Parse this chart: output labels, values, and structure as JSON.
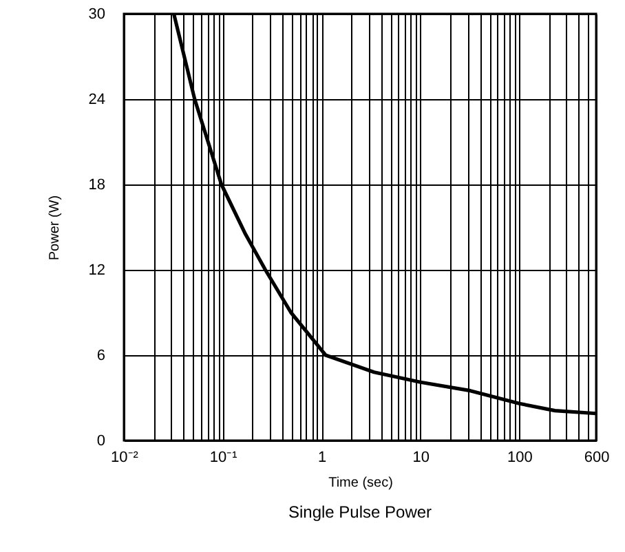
{
  "chart_data": {
    "type": "line",
    "title": "Single Pulse Power",
    "xlabel": "Time (sec)",
    "ylabel": "Power (W)",
    "log": "x",
    "grid": true,
    "marker": "none",
    "line_style": "solid",
    "x": [
      0.032,
      0.052,
      0.097,
      0.17,
      0.27,
      0.49,
      1.1,
      3.4,
      10,
      32,
      100,
      230,
      600
    ],
    "series": [
      {
        "color": "#000000",
        "values": [
          30,
          24,
          18,
          14.5,
          12,
          9,
          6,
          4.8,
          4.1,
          3.5,
          2.6,
          2.1,
          1.9
        ]
      }
    ],
    "xlim": [
      0.01,
      600
    ],
    "xticks": [
      {
        "value": 0.01,
        "label": "10⁻²"
      },
      {
        "value": 0.02,
        "label": null
      },
      {
        "value": 0.03,
        "label": null
      },
      {
        "value": 0.04,
        "label": null
      },
      {
        "value": 0.05,
        "label": null
      },
      {
        "value": 0.06,
        "label": null
      },
      {
        "value": 0.07,
        "label": null
      },
      {
        "value": 0.08,
        "label": null
      },
      {
        "value": 0.09,
        "label": null
      },
      {
        "value": 0.1,
        "label": "10⁻¹"
      },
      {
        "value": 0.2,
        "label": null
      },
      {
        "value": 0.3,
        "label": null
      },
      {
        "value": 0.4,
        "label": null
      },
      {
        "value": 0.5,
        "label": null
      },
      {
        "value": 0.6,
        "label": null
      },
      {
        "value": 0.7,
        "label": null
      },
      {
        "value": 0.8,
        "label": null
      },
      {
        "value": 0.9,
        "label": null
      },
      1,
      {
        "value": 2,
        "label": null
      },
      {
        "value": 3,
        "label": null
      },
      {
        "value": 4,
        "label": null
      },
      {
        "value": 5,
        "label": null
      },
      {
        "value": 6,
        "label": null
      },
      {
        "value": 7,
        "label": null
      },
      {
        "value": 8,
        "label": null
      },
      {
        "value": 9,
        "label": null
      },
      10,
      {
        "value": 20,
        "label": null
      },
      {
        "value": 30,
        "label": null
      },
      {
        "value": 40,
        "label": null
      },
      {
        "value": 50,
        "label": null
      },
      {
        "value": 60,
        "label": null
      },
      {
        "value": 70,
        "label": null
      },
      {
        "value": 80,
        "label": null
      },
      {
        "value": 90,
        "label": null
      },
      100,
      {
        "value": 200,
        "label": null
      },
      {
        "value": 300,
        "label": null
      },
      {
        "value": 400,
        "label": null
      },
      {
        "value": 500,
        "label": null
      },
      600
    ],
    "ylim": [
      0,
      30
    ],
    "yticks": [
      0,
      6,
      12,
      18,
      24,
      30
    ]
  }
}
